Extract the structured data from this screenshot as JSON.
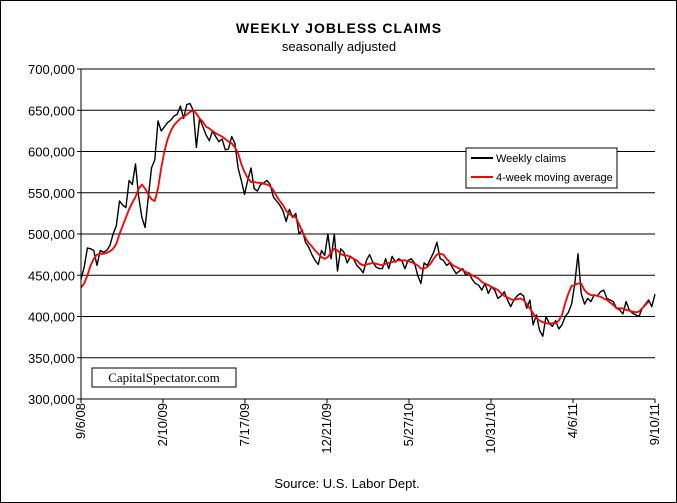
{
  "chart_data": {
    "type": "line",
    "title": "WEEKLY JOBLESS CLAIMS",
    "subtitle": "seasonally adjusted",
    "source": "Source: U.S. Labor Dept.",
    "watermark": "CapitalSpectator.com",
    "ylim": [
      300000,
      700000
    ],
    "yticks": [
      300000,
      350000,
      400000,
      450000,
      500000,
      550000,
      600000,
      650000,
      700000
    ],
    "ytick_labels": [
      "300,000",
      "350,000",
      "400,000",
      "450,000",
      "500,000",
      "550,000",
      "600,000",
      "650,000",
      "700,000"
    ],
    "x_tick_labels": [
      "9/6/08",
      "2/10/09",
      "7/17/09",
      "12/21/09",
      "5/27/10",
      "10/31/10",
      "4/6/11",
      "9/10/11"
    ],
    "grid": true,
    "legend_position": "right",
    "colors": {
      "weekly": "#000000",
      "average": "#ff0000",
      "plot_bg": "#ffffff",
      "grid": "#000000"
    },
    "series": [
      {
        "name": "Weekly claims",
        "values": [
          445000,
          460000,
          483000,
          482000,
          480000,
          462000,
          480000,
          478000,
          480000,
          486000,
          500000,
          510000,
          540000,
          535000,
          532000,
          565000,
          560000,
          585000,
          545000,
          520000,
          508000,
          545000,
          580000,
          590000,
          637000,
          625000,
          630000,
          635000,
          638000,
          643000,
          645000,
          655000,
          640000,
          657000,
          658000,
          650000,
          605000,
          640000,
          630000,
          620000,
          613000,
          625000,
          618000,
          612000,
          615000,
          602000,
          603000,
          618000,
          610000,
          580000,
          565000,
          548000,
          565000,
          580000,
          555000,
          552000,
          560000,
          562000,
          565000,
          560000,
          545000,
          540000,
          535000,
          528000,
          515000,
          530000,
          520000,
          525000,
          500000,
          505000,
          490000,
          484000,
          475000,
          468000,
          463000,
          480000,
          474000,
          500000,
          470000,
          500000,
          455000,
          482000,
          478000,
          465000,
          473000,
          470000,
          462000,
          458000,
          453000,
          468000,
          475000,
          466000,
          460000,
          458000,
          458000,
          470000,
          458000,
          473000,
          466000,
          470000,
          468000,
          458000,
          468000,
          470000,
          465000,
          450000,
          440000,
          465000,
          462000,
          470000,
          478000,
          490000,
          470000,
          468000,
          462000,
          465000,
          458000,
          452000,
          455000,
          458000,
          450000,
          453000,
          445000,
          440000,
          438000,
          432000,
          440000,
          428000,
          436000,
          432000,
          422000,
          425000,
          430000,
          420000,
          412000,
          420000,
          425000,
          428000,
          425000,
          410000,
          420000,
          390000,
          402000,
          383000,
          376000,
          400000,
          392000,
          388000,
          395000,
          385000,
          390000,
          400000,
          405000,
          415000,
          440000,
          476000,
          428000,
          415000,
          422000,
          418000,
          426000,
          425000,
          430000,
          432000,
          422000,
          420000,
          418000,
          410000,
          408000,
          403000,
          418000,
          408000,
          404000,
          402000,
          400000,
          410000,
          415000,
          420000,
          412000,
          427000
        ]
      },
      {
        "name": "4-week moving average",
        "values": [
          435000,
          440000,
          450000,
          462000,
          470000,
          475000,
          476000,
          476000,
          477000,
          479000,
          482000,
          488000,
          500000,
          510000,
          520000,
          530000,
          538000,
          545000,
          555000,
          560000,
          555000,
          548000,
          542000,
          540000,
          555000,
          580000,
          600000,
          615000,
          625000,
          632000,
          636000,
          640000,
          642000,
          645000,
          648000,
          650000,
          646000,
          640000,
          636000,
          630000,
          628000,
          625000,
          622000,
          620000,
          618000,
          615000,
          612000,
          610000,
          605000,
          598000,
          585000,
          575000,
          568000,
          563000,
          563000,
          562000,
          562000,
          561000,
          560000,
          558000,
          553000,
          546000,
          540000,
          535000,
          528000,
          524000,
          522000,
          520000,
          512000,
          503000,
          495000,
          489000,
          485000,
          480000,
          476000,
          472000,
          470000,
          472000,
          478000,
          482000,
          480000,
          476000,
          474000,
          474000,
          472000,
          470000,
          468000,
          464000,
          462000,
          463000,
          464000,
          465000,
          464000,
          463000,
          462000,
          464000,
          465000,
          466000,
          467000,
          468000,
          468000,
          468000,
          467000,
          466000,
          464000,
          462000,
          458000,
          458000,
          460000,
          464000,
          470000,
          475000,
          476000,
          475000,
          470000,
          466000,
          462000,
          460000,
          458000,
          456000,
          454000,
          452000,
          450000,
          448000,
          446000,
          442000,
          440000,
          438000,
          436000,
          434000,
          432000,
          428000,
          425000,
          423000,
          421000,
          420000,
          421000,
          422000,
          420000,
          415000,
          410000,
          404000,
          398000,
          395000,
          393000,
          392000,
          391000,
          392000,
          392000,
          395000,
          402000,
          416000,
          428000,
          437000,
          438000,
          440000,
          440000,
          432000,
          428000,
          426000,
          426000,
          425000,
          424000,
          422000,
          420000,
          417000,
          414000,
          410000,
          410000,
          410000,
          408000,
          407000,
          406000,
          405000,
          406000,
          410000,
          414000,
          418000
        ]
      }
    ]
  }
}
